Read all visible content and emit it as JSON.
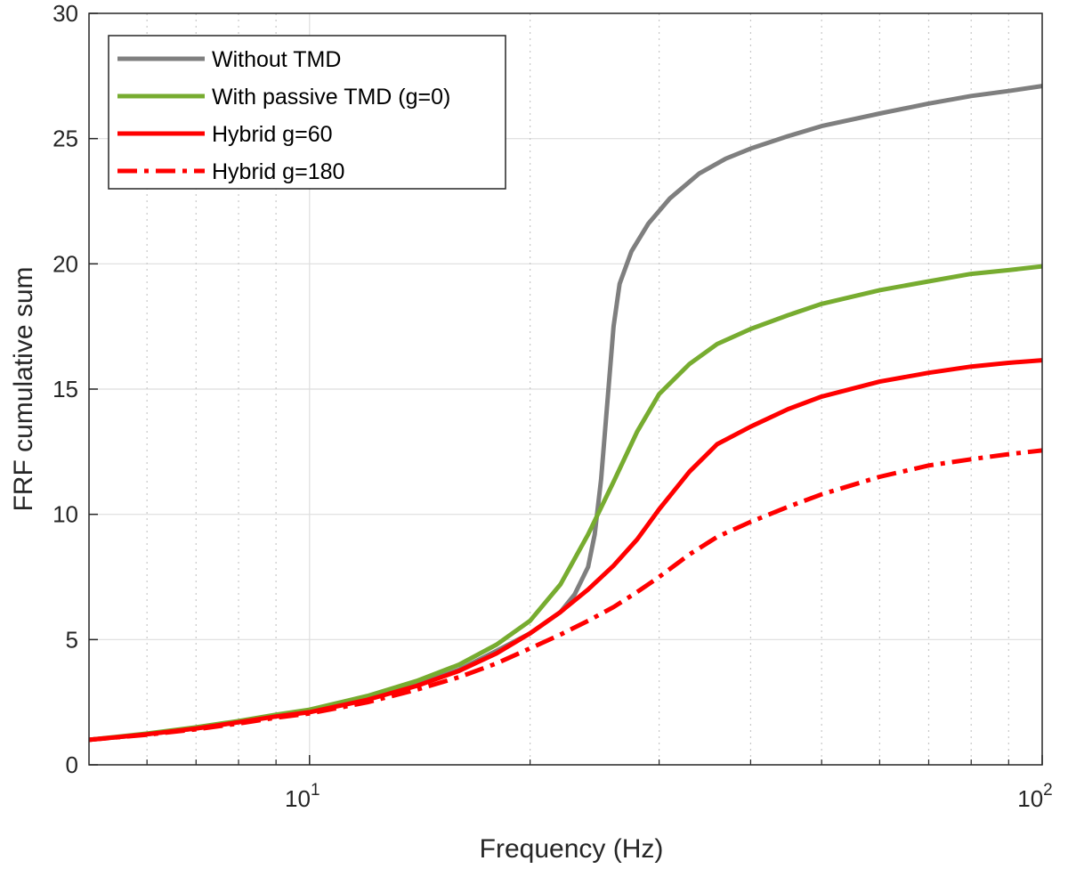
{
  "chart_data": {
    "type": "line",
    "xlabel": "Frequency (Hz)",
    "ylabel": "FRF cumulative sum",
    "xscale": "log",
    "xlim": [
      5,
      100
    ],
    "ylim": [
      0,
      30
    ],
    "yticks": [
      0,
      5,
      10,
      15,
      20,
      25,
      30
    ],
    "xticks": [
      {
        "value": 10,
        "base": "10",
        "exp": "1"
      },
      {
        "value": 100,
        "base": "10",
        "exp": "2"
      }
    ],
    "grid": true,
    "minor_grid_x": true,
    "legend": "top-left",
    "series": [
      {
        "name": "Without TMD",
        "color": "#7f7f7f",
        "dash": "solid",
        "points": [
          [
            5,
            1.0
          ],
          [
            6,
            1.22
          ],
          [
            7,
            1.45
          ],
          [
            8,
            1.7
          ],
          [
            9,
            1.95
          ],
          [
            10,
            2.15
          ],
          [
            12,
            2.65
          ],
          [
            14,
            3.2
          ],
          [
            16,
            3.8
          ],
          [
            18,
            4.55
          ],
          [
            20,
            5.25
          ],
          [
            22,
            6.1
          ],
          [
            23,
            6.8
          ],
          [
            24,
            7.9
          ],
          [
            24.5,
            9.2
          ],
          [
            25,
            11.4
          ],
          [
            25.5,
            14.5
          ],
          [
            26,
            17.5
          ],
          [
            26.5,
            19.2
          ],
          [
            27.5,
            20.5
          ],
          [
            29,
            21.6
          ],
          [
            31,
            22.6
          ],
          [
            34,
            23.6
          ],
          [
            37,
            24.2
          ],
          [
            40,
            24.6
          ],
          [
            45,
            25.1
          ],
          [
            50,
            25.5
          ],
          [
            60,
            26.0
          ],
          [
            70,
            26.4
          ],
          [
            80,
            26.7
          ],
          [
            90,
            26.9
          ],
          [
            100,
            27.1
          ]
        ]
      },
      {
        "name": "With passive TMD (g=0)",
        "color": "#77ac30",
        "dash": "solid",
        "points": [
          [
            5,
            1.0
          ],
          [
            6,
            1.25
          ],
          [
            7,
            1.5
          ],
          [
            8,
            1.75
          ],
          [
            9,
            2.0
          ],
          [
            10,
            2.2
          ],
          [
            12,
            2.75
          ],
          [
            14,
            3.35
          ],
          [
            16,
            4.0
          ],
          [
            18,
            4.8
          ],
          [
            20,
            5.75
          ],
          [
            22,
            7.2
          ],
          [
            24,
            9.2
          ],
          [
            26,
            11.3
          ],
          [
            28,
            13.3
          ],
          [
            30,
            14.8
          ],
          [
            33,
            16.0
          ],
          [
            36,
            16.8
          ],
          [
            40,
            17.4
          ],
          [
            45,
            17.95
          ],
          [
            50,
            18.4
          ],
          [
            60,
            18.95
          ],
          [
            70,
            19.3
          ],
          [
            80,
            19.6
          ],
          [
            90,
            19.75
          ],
          [
            100,
            19.9
          ]
        ]
      },
      {
        "name": "Hybrid g=60",
        "color": "#ff0000",
        "dash": "solid",
        "points": [
          [
            5,
            1.0
          ],
          [
            6,
            1.22
          ],
          [
            7,
            1.45
          ],
          [
            8,
            1.7
          ],
          [
            9,
            1.93
          ],
          [
            10,
            2.1
          ],
          [
            12,
            2.6
          ],
          [
            14,
            3.15
          ],
          [
            16,
            3.75
          ],
          [
            18,
            4.45
          ],
          [
            20,
            5.25
          ],
          [
            22,
            6.1
          ],
          [
            24,
            7.0
          ],
          [
            26,
            7.95
          ],
          [
            28,
            9.0
          ],
          [
            30,
            10.2
          ],
          [
            33,
            11.7
          ],
          [
            36,
            12.8
          ],
          [
            40,
            13.5
          ],
          [
            45,
            14.2
          ],
          [
            50,
            14.7
          ],
          [
            60,
            15.3
          ],
          [
            70,
            15.65
          ],
          [
            80,
            15.9
          ],
          [
            90,
            16.05
          ],
          [
            100,
            16.15
          ]
        ]
      },
      {
        "name": "Hybrid g=180",
        "color": "#ff0000",
        "dash": "dashdot",
        "points": [
          [
            5,
            1.0
          ],
          [
            6,
            1.2
          ],
          [
            7,
            1.42
          ],
          [
            8,
            1.65
          ],
          [
            9,
            1.88
          ],
          [
            10,
            2.05
          ],
          [
            12,
            2.5
          ],
          [
            14,
            3.0
          ],
          [
            16,
            3.5
          ],
          [
            18,
            4.05
          ],
          [
            20,
            4.65
          ],
          [
            22,
            5.2
          ],
          [
            24,
            5.75
          ],
          [
            26,
            6.3
          ],
          [
            28,
            6.9
          ],
          [
            30,
            7.5
          ],
          [
            33,
            8.4
          ],
          [
            36,
            9.1
          ],
          [
            40,
            9.7
          ],
          [
            45,
            10.3
          ],
          [
            50,
            10.8
          ],
          [
            60,
            11.5
          ],
          [
            70,
            11.95
          ],
          [
            80,
            12.2
          ],
          [
            90,
            12.4
          ],
          [
            100,
            12.55
          ]
        ]
      }
    ]
  }
}
